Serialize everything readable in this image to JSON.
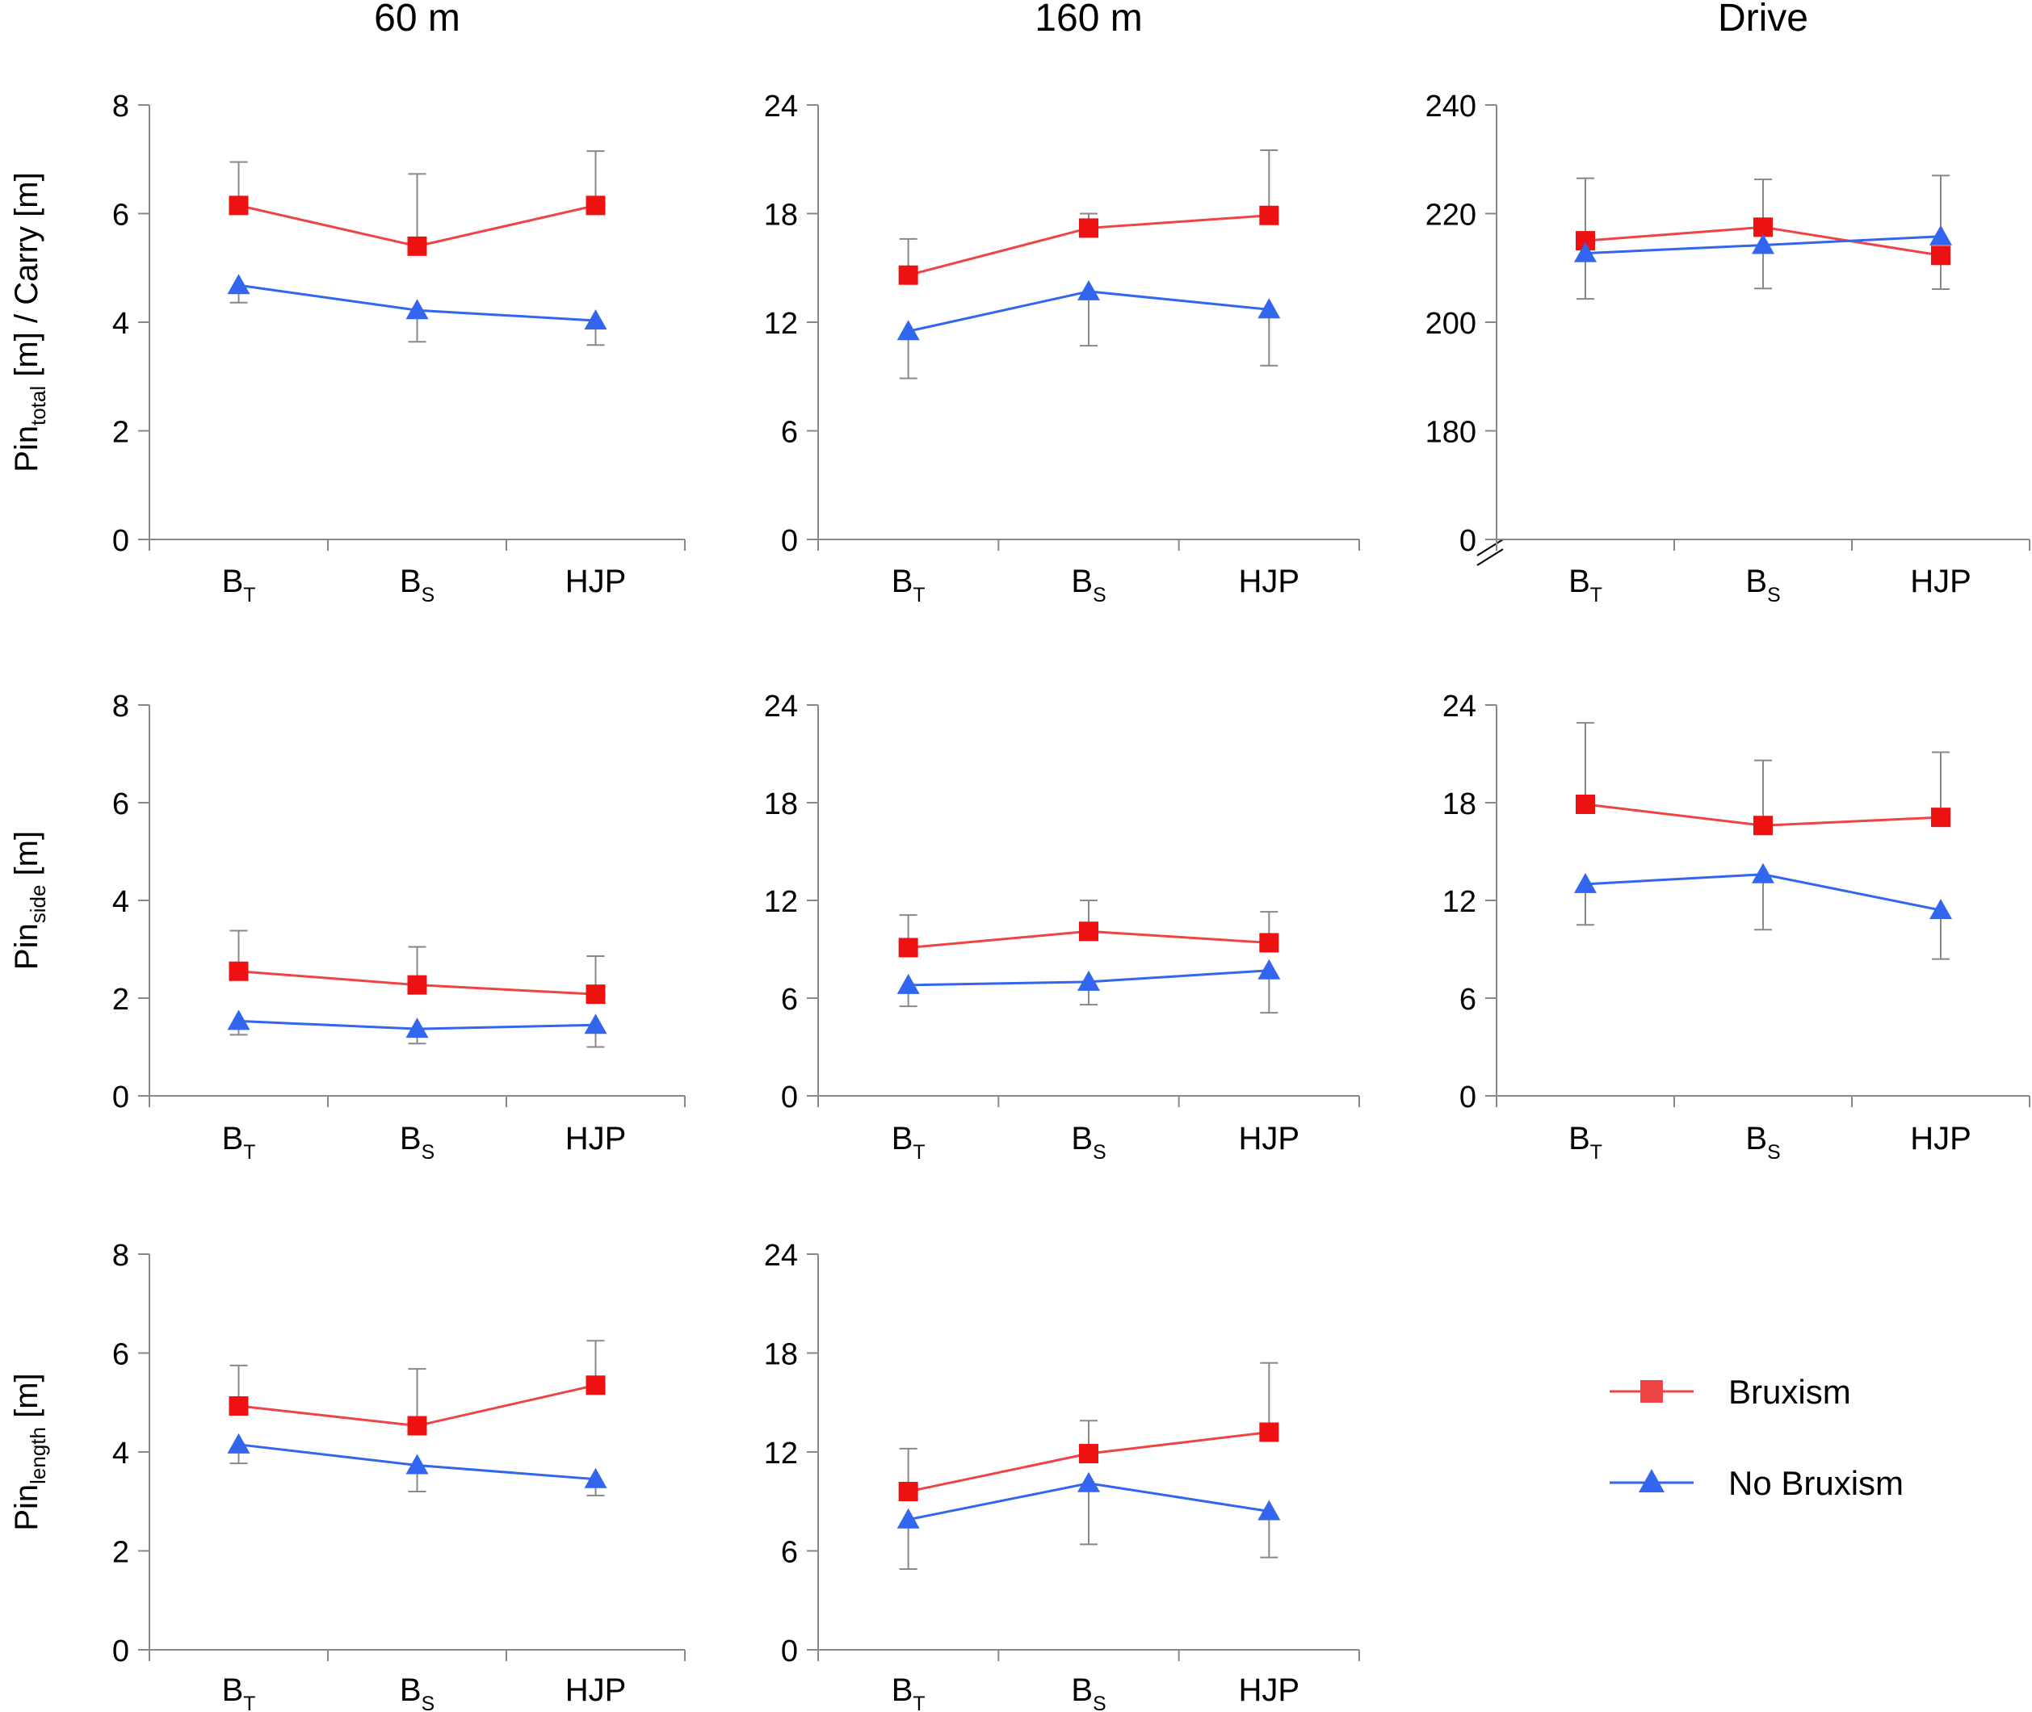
{
  "figure": {
    "column_titles": [
      "60 m",
      "160 m",
      "Drive"
    ],
    "row_labels": [
      {
        "main": "Pin",
        "sub": "total",
        "suffix": " [m] / Carry [m]"
      },
      {
        "main": "Pin",
        "sub": "side",
        "suffix": " [m]"
      },
      {
        "main": "Pin",
        "sub": "length",
        "suffix": " [m]"
      }
    ],
    "legend": {
      "position": "bottom-right",
      "entries": [
        {
          "label": "Bruxism",
          "color": "#ee4444",
          "marker": "square"
        },
        {
          "label": "No Bruxism",
          "color": "#3366ee",
          "marker": "triangle"
        }
      ]
    },
    "colors": {
      "bruxism_line": "#ee4444",
      "bruxism_marker": "#ee1111",
      "no_bruxism_line": "#3366ee",
      "no_bruxism_marker": "#3366ee",
      "axis": "#888888",
      "error_bar": "#888888"
    }
  },
  "chart_data": [
    {
      "id": "total-60m",
      "type": "line",
      "row": 0,
      "col": 0,
      "title": "60 m",
      "ylabel": "Pin total [m] / Carry [m]",
      "categories": [
        {
          "main": "B",
          "sub": "T"
        },
        {
          "main": "B",
          "sub": "S"
        },
        {
          "main": "HJP",
          "sub": ""
        }
      ],
      "ylim": [
        0,
        8
      ],
      "yticks": [
        0,
        2,
        4,
        6,
        8
      ],
      "axis_break": false,
      "series": [
        {
          "name": "Bruxism",
          "values": [
            6.15,
            5.4,
            6.15
          ],
          "err_up": [
            0.8,
            1.33,
            1.0
          ],
          "err_down": [
            0,
            0,
            0
          ]
        },
        {
          "name": "No Bruxism",
          "values": [
            4.68,
            4.22,
            4.03
          ],
          "err_up": [
            0,
            0,
            0
          ],
          "err_down": [
            0.32,
            0.58,
            0.45
          ]
        }
      ]
    },
    {
      "id": "total-160m",
      "type": "line",
      "row": 0,
      "col": 1,
      "title": "160 m",
      "categories": [
        {
          "main": "B",
          "sub": "T"
        },
        {
          "main": "B",
          "sub": "S"
        },
        {
          "main": "HJP",
          "sub": ""
        }
      ],
      "ylim": [
        0,
        24
      ],
      "yticks": [
        0,
        6,
        12,
        18,
        24
      ],
      "axis_break": false,
      "series": [
        {
          "name": "Bruxism",
          "values": [
            14.6,
            17.2,
            17.9
          ],
          "err_up": [
            2.0,
            0.8,
            3.6
          ],
          "err_down": [
            0,
            0,
            0
          ]
        },
        {
          "name": "No Bruxism",
          "values": [
            11.5,
            13.7,
            12.7
          ],
          "err_up": [
            0,
            0,
            0
          ],
          "err_down": [
            2.6,
            3.0,
            3.1
          ]
        }
      ]
    },
    {
      "id": "total-drive",
      "type": "line",
      "row": 0,
      "col": 2,
      "title": "Drive",
      "categories": [
        {
          "main": "B",
          "sub": "T"
        },
        {
          "main": "B",
          "sub": "S"
        },
        {
          "main": "HJP",
          "sub": ""
        }
      ],
      "ylim": [
        160,
        240
      ],
      "yticks": [
        180,
        200,
        220,
        240
      ],
      "axis_break": true,
      "break_label": "0",
      "series": [
        {
          "name": "Bruxism",
          "values": [
            215.0,
            217.5,
            212.3
          ],
          "err_up": [
            11.5,
            8.8,
            0
          ],
          "err_down": [
            0,
            11.3,
            6.2
          ]
        },
        {
          "name": "No Bruxism",
          "values": [
            212.7,
            214.2,
            215.8
          ],
          "err_up": [
            0,
            0,
            11.2
          ],
          "err_down": [
            8.4,
            0,
            0
          ]
        }
      ]
    },
    {
      "id": "side-60m",
      "type": "line",
      "row": 1,
      "col": 0,
      "ylabel": "Pin side [m]",
      "categories": [
        {
          "main": "B",
          "sub": "T"
        },
        {
          "main": "B",
          "sub": "S"
        },
        {
          "main": "HJP",
          "sub": ""
        }
      ],
      "ylim": [
        0,
        8
      ],
      "yticks": [
        0,
        2,
        4,
        6,
        8
      ],
      "axis_break": false,
      "series": [
        {
          "name": "Bruxism",
          "values": [
            2.55,
            2.27,
            2.08
          ],
          "err_up": [
            0.83,
            0.78,
            0.78
          ],
          "err_down": [
            0,
            0,
            0
          ]
        },
        {
          "name": "No Bruxism",
          "values": [
            1.53,
            1.37,
            1.45
          ],
          "err_up": [
            0,
            0,
            0
          ],
          "err_down": [
            0.28,
            0.3,
            0.45
          ]
        }
      ]
    },
    {
      "id": "side-160m",
      "type": "line",
      "row": 1,
      "col": 1,
      "categories": [
        {
          "main": "B",
          "sub": "T"
        },
        {
          "main": "B",
          "sub": "S"
        },
        {
          "main": "HJP",
          "sub": ""
        }
      ],
      "ylim": [
        0,
        24
      ],
      "yticks": [
        0,
        6,
        12,
        18,
        24
      ],
      "axis_break": false,
      "series": [
        {
          "name": "Bruxism",
          "values": [
            9.1,
            10.1,
            9.4
          ],
          "err_up": [
            2.0,
            1.9,
            1.9
          ],
          "err_down": [
            0,
            0,
            0
          ]
        },
        {
          "name": "No Bruxism",
          "values": [
            6.8,
            7.0,
            7.7
          ],
          "err_up": [
            0,
            0,
            0
          ],
          "err_down": [
            1.3,
            1.4,
            2.6
          ]
        }
      ]
    },
    {
      "id": "side-drive",
      "type": "line",
      "row": 1,
      "col": 2,
      "categories": [
        {
          "main": "B",
          "sub": "T"
        },
        {
          "main": "B",
          "sub": "S"
        },
        {
          "main": "HJP",
          "sub": ""
        }
      ],
      "ylim": [
        0,
        24
      ],
      "yticks": [
        0,
        6,
        12,
        18,
        24
      ],
      "axis_break": false,
      "series": [
        {
          "name": "Bruxism",
          "values": [
            17.9,
            16.6,
            17.1
          ],
          "err_up": [
            5.0,
            4.0,
            4.0
          ],
          "err_down": [
            0,
            0,
            0
          ]
        },
        {
          "name": "No Bruxism",
          "values": [
            13.0,
            13.6,
            11.4
          ],
          "err_up": [
            0,
            0,
            0
          ],
          "err_down": [
            2.5,
            3.4,
            3.0
          ]
        }
      ]
    },
    {
      "id": "length-60m",
      "type": "line",
      "row": 2,
      "col": 0,
      "ylabel": "Pin length [m]",
      "categories": [
        {
          "main": "B",
          "sub": "T"
        },
        {
          "main": "B",
          "sub": "S"
        },
        {
          "main": "HJP",
          "sub": ""
        }
      ],
      "ylim": [
        0,
        8
      ],
      "yticks": [
        0,
        2,
        4,
        6,
        8
      ],
      "axis_break": false,
      "series": [
        {
          "name": "Bruxism",
          "values": [
            4.93,
            4.53,
            5.35
          ],
          "err_up": [
            0.82,
            1.15,
            0.9
          ],
          "err_down": [
            0,
            0,
            0
          ]
        },
        {
          "name": "No Bruxism",
          "values": [
            4.15,
            3.73,
            3.45
          ],
          "err_up": [
            0,
            0,
            0
          ],
          "err_down": [
            0.38,
            0.53,
            0.33
          ]
        }
      ]
    },
    {
      "id": "length-160m",
      "type": "line",
      "row": 2,
      "col": 1,
      "categories": [
        {
          "main": "B",
          "sub": "T"
        },
        {
          "main": "B",
          "sub": "S"
        },
        {
          "main": "HJP",
          "sub": ""
        }
      ],
      "ylim": [
        0,
        24
      ],
      "yticks": [
        0,
        6,
        12,
        18,
        24
      ],
      "axis_break": false,
      "series": [
        {
          "name": "Bruxism",
          "values": [
            9.6,
            11.9,
            13.2
          ],
          "err_up": [
            2.6,
            2.0,
            4.2
          ],
          "err_down": [
            0,
            0,
            0
          ]
        },
        {
          "name": "No Bruxism",
          "values": [
            7.9,
            10.1,
            8.4
          ],
          "err_up": [
            0,
            0,
            0
          ],
          "err_down": [
            3.0,
            3.7,
            2.8
          ]
        }
      ]
    }
  ]
}
